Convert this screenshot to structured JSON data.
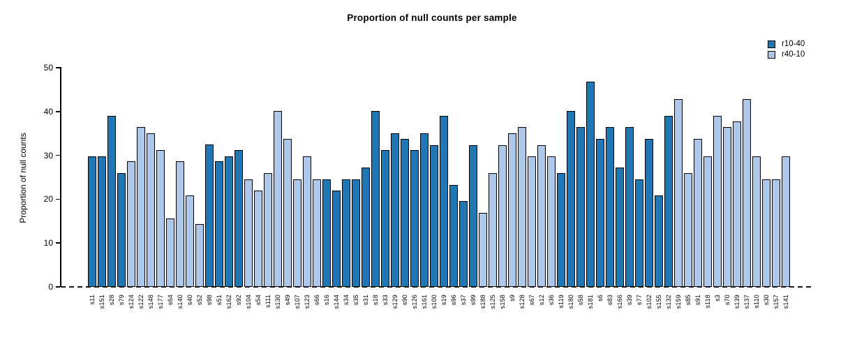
{
  "page": {
    "title": "Proportion of null counts per sample"
  },
  "legend": {
    "items": [
      {
        "label": "r10-40",
        "color": "#1f77b4"
      },
      {
        "label": "r40-10",
        "color": "#aec7e8"
      }
    ]
  },
  "chart_data": {
    "type": "bar",
    "title": "Proportion of null counts per sample",
    "xlabel": "",
    "ylabel": "Proportion of null counts",
    "ylim": [
      0,
      50
    ],
    "yticks": [
      0,
      10,
      20,
      30,
      40,
      50
    ],
    "grid": false,
    "legend_position": "top-right",
    "baseline_style": "dashed-black-at-zero",
    "bar_edge_color": "#000000",
    "series": [
      {
        "name": "r10-40",
        "color": "#1f77b4"
      },
      {
        "name": "r40-10",
        "color": "#aec7e8"
      }
    ],
    "categories": [
      "s11",
      "s151",
      "s28",
      "s79",
      "s124",
      "s122",
      "s148",
      "s177",
      "s64",
      "s140",
      "s40",
      "s52",
      "s98",
      "s51",
      "s162",
      "s92",
      "s104",
      "s54",
      "s111",
      "s130",
      "s49",
      "s107",
      "s123",
      "s66",
      "s16",
      "s144",
      "s34",
      "s35",
      "s31",
      "s18",
      "s33",
      "s129",
      "s90",
      "s126",
      "s161",
      "s100",
      "s19",
      "s96",
      "s37",
      "s99",
      "s188",
      "s125",
      "s158",
      "s9",
      "s128",
      "s67",
      "s12",
      "s36",
      "s119",
      "s180",
      "s58",
      "s181",
      "s6",
      "s83",
      "s166",
      "s39",
      "s77",
      "s102",
      "s155",
      "s132",
      "s159",
      "s85",
      "s91",
      "s118",
      "s3",
      "s70",
      "s139",
      "s137",
      "s110",
      "s30",
      "s157",
      "s141"
    ],
    "values": [
      29.8,
      29.8,
      39,
      26,
      28.6,
      36.4,
      35,
      31.2,
      15.6,
      28.6,
      20.8,
      14.3,
      32.5,
      28.6,
      29.8,
      31.2,
      24.6,
      22,
      26,
      40.2,
      33.7,
      24.6,
      29.8,
      24.6,
      24.6,
      22,
      24.6,
      24.6,
      27.3,
      40.2,
      31.2,
      35,
      33.7,
      31.2,
      35,
      32.4,
      39,
      23.3,
      19.6,
      32.4,
      16.9,
      26,
      32.4,
      35,
      36.4,
      29.8,
      32.4,
      29.8,
      26,
      40.2,
      36.4,
      46.8,
      33.7,
      36.4,
      27.3,
      36.4,
      24.6,
      33.7,
      20.8,
      39,
      42.8,
      26,
      33.7,
      29.8,
      39,
      36.4,
      37.7,
      42.8,
      29.8,
      24.6,
      24.6,
      29.8
    ],
    "groups": [
      "r10-40",
      "r10-40",
      "r10-40",
      "r10-40",
      "r40-10",
      "r40-10",
      "r40-10",
      "r40-10",
      "r40-10",
      "r40-10",
      "r40-10",
      "r40-10",
      "r10-40",
      "r10-40",
      "r10-40",
      "r10-40",
      "r40-10",
      "r40-10",
      "r40-10",
      "r40-10",
      "r40-10",
      "r40-10",
      "r40-10",
      "r40-10",
      "r10-40",
      "r10-40",
      "r10-40",
      "r10-40",
      "r10-40",
      "r10-40",
      "r10-40",
      "r10-40",
      "r10-40",
      "r10-40",
      "r10-40",
      "r10-40",
      "r10-40",
      "r10-40",
      "r10-40",
      "r10-40",
      "r40-10",
      "r40-10",
      "r40-10",
      "r40-10",
      "r40-10",
      "r40-10",
      "r40-10",
      "r40-10",
      "r10-40",
      "r10-40",
      "r10-40",
      "r10-40",
      "r10-40",
      "r10-40",
      "r10-40",
      "r10-40",
      "r10-40",
      "r10-40",
      "r10-40",
      "r10-40",
      "r40-10",
      "r40-10",
      "r40-10",
      "r40-10",
      "r40-10",
      "r40-10",
      "r40-10",
      "r40-10",
      "r40-10",
      "r40-10",
      "r40-10",
      "r40-10"
    ]
  }
}
